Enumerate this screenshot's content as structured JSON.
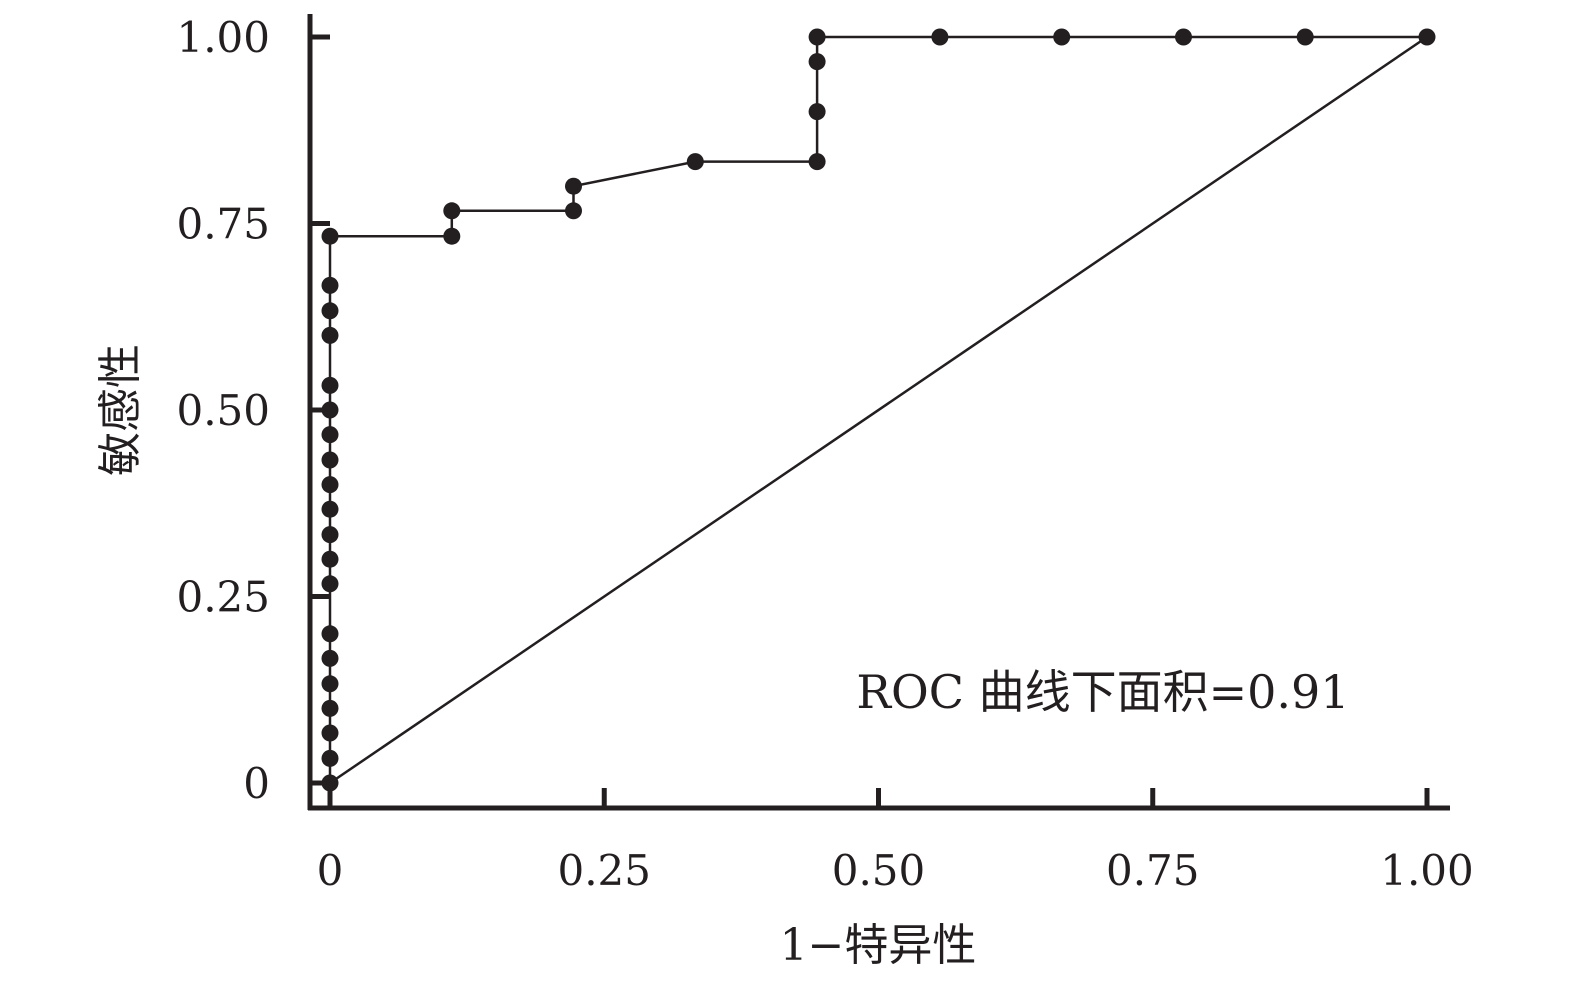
{
  "chart_data": {
    "type": "line",
    "title": "",
    "xlabel": "1−特异性",
    "ylabel": "敏感性",
    "xlim": [
      0,
      1
    ],
    "ylim": [
      0,
      1
    ],
    "grid": false,
    "legend": "none",
    "x_ticks": [
      {
        "value": 0,
        "label": "0"
      },
      {
        "value": 0.25,
        "label": "0.25"
      },
      {
        "value": 0.5,
        "label": "0.50"
      },
      {
        "value": 0.75,
        "label": "0.75"
      },
      {
        "value": 1,
        "label": "1.00"
      }
    ],
    "y_ticks": [
      {
        "value": 0,
        "label": "0"
      },
      {
        "value": 0.25,
        "label": "0.25"
      },
      {
        "value": 0.5,
        "label": "0.50"
      },
      {
        "value": 0.75,
        "label": "0.75"
      },
      {
        "value": 1,
        "label": "1.00"
      }
    ],
    "annotation": "ROC 曲线下面积=0.91",
    "series": [
      {
        "kind": "roc-curve",
        "markers": true,
        "color": "#231f20",
        "points": [
          [
            0,
            0
          ],
          [
            0,
            0.033
          ],
          [
            0,
            0.067
          ],
          [
            0,
            0.1
          ],
          [
            0,
            0.133
          ],
          [
            0,
            0.167
          ],
          [
            0,
            0.2
          ],
          [
            0,
            0.267
          ],
          [
            0,
            0.3
          ],
          [
            0,
            0.333
          ],
          [
            0,
            0.367
          ],
          [
            0,
            0.4
          ],
          [
            0,
            0.433
          ],
          [
            0,
            0.467
          ],
          [
            0,
            0.5
          ],
          [
            0,
            0.533
          ],
          [
            0,
            0.6
          ],
          [
            0,
            0.633
          ],
          [
            0,
            0.667
          ],
          [
            0,
            0.733
          ],
          [
            0.111,
            0.733
          ],
          [
            0.111,
            0.767
          ],
          [
            0.222,
            0.767
          ],
          [
            0.222,
            0.8
          ],
          [
            0.333,
            0.833
          ],
          [
            0.444,
            0.833
          ],
          [
            0.444,
            0.9
          ],
          [
            0.444,
            0.967
          ],
          [
            0.444,
            1.0
          ],
          [
            0.556,
            1.0
          ],
          [
            0.667,
            1.0
          ],
          [
            0.778,
            1.0
          ],
          [
            0.889,
            1.0
          ],
          [
            1.0,
            1.0
          ]
        ]
      },
      {
        "kind": "reference-line",
        "markers": false,
        "color": "#231f20",
        "points": [
          [
            0,
            0
          ],
          [
            1,
            1
          ]
        ]
      }
    ]
  }
}
